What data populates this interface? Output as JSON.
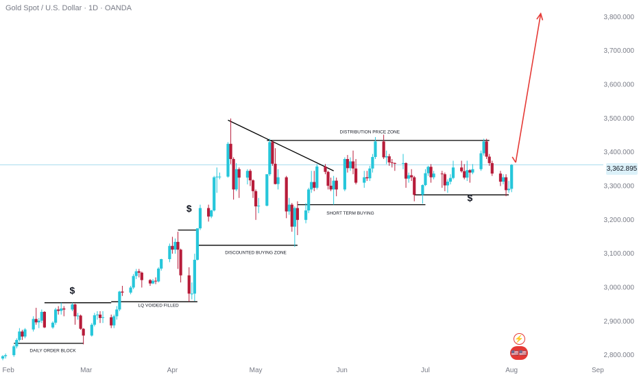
{
  "header": {
    "title": "Gold Spot / U.S. Dollar · 1D · OANDA"
  },
  "price_tag": "3,362.895",
  "colors": {
    "up": "#26c6da",
    "down": "#b71c3a",
    "projection": "#e53935",
    "axis_text": "#787b86",
    "current_price_line": "#a8dcee",
    "event": "#e53935"
  },
  "events": {
    "first_icon": "lightning-icon",
    "second_icon": "us-flag-icons",
    "second_label": "🇺🇸🇺🇸"
  },
  "chart_data": {
    "type": "candlestick",
    "title": "Gold Spot / U.S. Dollar · 1D · OANDA",
    "x_ticks": [
      "Feb",
      "Mar",
      "Apr",
      "May",
      "Jun",
      "Jul",
      "Aug",
      "Sep"
    ],
    "y_ticks": [
      "2,800.000",
      "2,900.000",
      "3,000.000",
      "3,100.000",
      "3,200.000",
      "3,300.000",
      "3,400.000",
      "3,500.000",
      "3,600.000",
      "3,700.000",
      "3,800.000"
    ],
    "ylim": [
      2780,
      3830
    ],
    "x_range": [
      "2025-01-29",
      "2025-09-03"
    ],
    "current_price": 3362.895,
    "candles": [
      [
        "2025-01-30",
        2790,
        2800,
        2785,
        2797
      ],
      [
        "2025-01-31",
        2797,
        2805,
        2790,
        2800
      ],
      [
        "2025-02-03",
        2800,
        2830,
        2795,
        2826
      ],
      [
        "2025-02-04",
        2826,
        2850,
        2820,
        2845
      ],
      [
        "2025-02-05",
        2845,
        2880,
        2840,
        2870
      ],
      [
        "2025-02-06",
        2870,
        2875,
        2845,
        2855
      ],
      [
        "2025-02-07",
        2855,
        2880,
        2850,
        2876
      ],
      [
        "2025-02-10",
        2876,
        2915,
        2870,
        2907
      ],
      [
        "2025-02-11",
        2907,
        2940,
        2890,
        2897
      ],
      [
        "2025-02-12",
        2897,
        2910,
        2880,
        2902
      ],
      [
        "2025-02-13",
        2902,
        2935,
        2895,
        2928
      ],
      [
        "2025-02-14",
        2928,
        2930,
        2880,
        2882
      ],
      [
        "2025-02-17",
        2882,
        2900,
        2878,
        2896
      ],
      [
        "2025-02-18",
        2896,
        2940,
        2890,
        2935
      ],
      [
        "2025-02-19",
        2935,
        2945,
        2920,
        2931
      ],
      [
        "2025-02-20",
        2931,
        2955,
        2920,
        2938
      ],
      [
        "2025-02-21",
        2938,
        2945,
        2915,
        2935
      ],
      [
        "2025-02-24",
        2935,
        2955,
        2930,
        2950
      ],
      [
        "2025-02-25",
        2950,
        2952,
        2890,
        2915
      ],
      [
        "2025-02-26",
        2915,
        2925,
        2905,
        2917
      ],
      [
        "2025-02-27",
        2917,
        2920,
        2875,
        2878
      ],
      [
        "2025-02-28",
        2878,
        2880,
        2832,
        2858
      ],
      [
        "2025-03-03",
        2858,
        2895,
        2855,
        2890
      ],
      [
        "2025-03-04",
        2890,
        2925,
        2885,
        2918
      ],
      [
        "2025-03-05",
        2918,
        2930,
        2905,
        2920
      ],
      [
        "2025-03-06",
        2920,
        2930,
        2895,
        2910
      ],
      [
        "2025-03-07",
        2910,
        2930,
        2895,
        2912
      ],
      [
        "2025-03-10",
        2912,
        2920,
        2880,
        2888
      ],
      [
        "2025-03-11",
        2888,
        2920,
        2880,
        2915
      ],
      [
        "2025-03-12",
        2915,
        2945,
        2905,
        2935
      ],
      [
        "2025-03-13",
        2935,
        2990,
        2930,
        2988
      ],
      [
        "2025-03-14",
        2988,
        3005,
        2975,
        2985
      ],
      [
        "2025-03-17",
        2985,
        3005,
        2980,
        3000
      ],
      [
        "2025-03-18",
        3000,
        3040,
        2995,
        3034
      ],
      [
        "2025-03-19",
        3034,
        3055,
        3025,
        3048
      ],
      [
        "2025-03-20",
        3048,
        3055,
        3030,
        3044
      ],
      [
        "2025-03-21",
        3044,
        3047,
        3000,
        3022
      ],
      [
        "2025-03-24",
        3022,
        3025,
        3005,
        3012
      ],
      [
        "2025-03-25",
        3012,
        3025,
        3010,
        3020
      ],
      [
        "2025-03-26",
        3020,
        3030,
        3010,
        3018
      ],
      [
        "2025-03-27",
        3018,
        3060,
        3015,
        3056
      ],
      [
        "2025-03-28",
        3056,
        3085,
        3050,
        3084
      ],
      [
        "2025-03-31",
        3084,
        3130,
        3075,
        3123
      ],
      [
        "2025-04-01",
        3123,
        3150,
        3100,
        3112
      ],
      [
        "2025-04-02",
        3112,
        3145,
        3100,
        3135
      ],
      [
        "2025-04-03",
        3135,
        3165,
        3055,
        3112
      ],
      [
        "2025-04-04",
        3112,
        3115,
        3015,
        3036
      ],
      [
        "2025-04-07",
        3036,
        3060,
        2958,
        2982
      ],
      [
        "2025-04-08",
        2982,
        3015,
        2965,
        2982
      ],
      [
        "2025-04-09",
        2982,
        3100,
        2960,
        3082
      ],
      [
        "2025-04-10",
        3082,
        3175,
        3080,
        3175
      ],
      [
        "2025-04-11",
        3175,
        3245,
        3170,
        3235
      ],
      [
        "2025-04-14",
        3235,
        3245,
        3195,
        3210
      ],
      [
        "2025-04-15",
        3210,
        3230,
        3205,
        3228
      ],
      [
        "2025-04-16",
        3228,
        3330,
        3225,
        3326
      ],
      [
        "2025-04-17",
        3326,
        3355,
        3280,
        3328
      ],
      [
        "2025-04-18",
        3328,
        3340,
        3320,
        3328
      ],
      [
        "2025-04-21",
        3328,
        3430,
        3325,
        3425
      ],
      [
        "2025-04-22",
        3425,
        3500,
        3365,
        3380
      ],
      [
        "2025-04-23",
        3380,
        3385,
        3260,
        3290
      ],
      [
        "2025-04-24",
        3290,
        3368,
        3285,
        3350
      ],
      [
        "2025-04-25",
        3350,
        3355,
        3265,
        3325
      ],
      [
        "2025-04-28",
        3325,
        3350,
        3305,
        3345
      ],
      [
        "2025-04-29",
        3345,
        3350,
        3300,
        3317
      ],
      [
        "2025-04-30",
        3317,
        3320,
        3265,
        3285
      ],
      [
        "2025-05-01",
        3285,
        3290,
        3200,
        3240
      ],
      [
        "2025-05-02",
        3240,
        3265,
        3220,
        3242
      ],
      [
        "2025-05-05",
        3242,
        3335,
        3240,
        3335
      ],
      [
        "2025-05-06",
        3335,
        3440,
        3330,
        3430
      ],
      [
        "2025-05-07",
        3430,
        3435,
        3360,
        3366
      ],
      [
        "2025-05-08",
        3366,
        3412,
        3305,
        3306
      ],
      [
        "2025-05-09",
        3306,
        3350,
        3290,
        3326
      ],
      [
        "2025-05-12",
        3326,
        3330,
        3205,
        3225
      ],
      [
        "2025-05-13",
        3225,
        3265,
        3215,
        3245
      ],
      [
        "2025-05-14",
        3245,
        3250,
        3165,
        3180
      ],
      [
        "2025-05-15",
        3180,
        3240,
        3120,
        3235
      ],
      [
        "2025-05-16",
        3235,
        3255,
        3155,
        3200
      ],
      [
        "2025-05-19",
        3200,
        3250,
        3190,
        3228
      ],
      [
        "2025-05-20",
        3228,
        3295,
        3220,
        3290
      ],
      [
        "2025-05-21",
        3290,
        3345,
        3280,
        3312
      ],
      [
        "2025-05-22",
        3312,
        3345,
        3285,
        3295
      ],
      [
        "2025-05-23",
        3295,
        3365,
        3290,
        3358
      ],
      [
        "2025-05-26",
        3358,
        3365,
        3335,
        3342
      ],
      [
        "2025-05-27",
        3342,
        3345,
        3290,
        3301
      ],
      [
        "2025-05-28",
        3301,
        3325,
        3285,
        3290
      ],
      [
        "2025-05-29",
        3290,
        3330,
        3245,
        3316
      ],
      [
        "2025-05-30",
        3316,
        3325,
        3270,
        3290
      ],
      [
        "2025-06-02",
        3290,
        3385,
        3285,
        3380
      ],
      [
        "2025-06-03",
        3380,
        3392,
        3340,
        3353
      ],
      [
        "2025-06-04",
        3353,
        3385,
        3345,
        3373
      ],
      [
        "2025-06-05",
        3373,
        3405,
        3335,
        3352
      ],
      [
        "2025-06-06",
        3352,
        3380,
        3305,
        3310
      ],
      [
        "2025-06-09",
        3310,
        3345,
        3295,
        3326
      ],
      [
        "2025-06-10",
        3326,
        3345,
        3315,
        3323
      ],
      [
        "2025-06-11",
        3323,
        3360,
        3315,
        3352
      ],
      [
        "2025-06-12",
        3352,
        3395,
        3340,
        3386
      ],
      [
        "2025-06-13",
        3386,
        3445,
        3380,
        3432
      ],
      [
        "2025-06-16",
        3432,
        3452,
        3380,
        3385
      ],
      [
        "2025-06-17",
        3385,
        3405,
        3365,
        3388
      ],
      [
        "2025-06-18",
        3388,
        3395,
        3360,
        3370
      ],
      [
        "2025-06-19",
        3370,
        3380,
        3355,
        3368
      ],
      [
        "2025-06-20",
        3368,
        3370,
        3345,
        3367
      ],
      [
        "2025-06-23",
        3367,
        3395,
        3350,
        3368
      ],
      [
        "2025-06-24",
        3368,
        3370,
        3295,
        3322
      ],
      [
        "2025-06-25",
        3322,
        3340,
        3310,
        3332
      ],
      [
        "2025-06-26",
        3332,
        3350,
        3315,
        3326
      ],
      [
        "2025-06-27",
        3326,
        3330,
        3255,
        3274
      ],
      [
        "2025-06-30",
        3274,
        3305,
        3248,
        3303
      ],
      [
        "2025-07-01",
        3303,
        3350,
        3300,
        3338
      ],
      [
        "2025-07-02",
        3338,
        3360,
        3330,
        3357
      ],
      [
        "2025-07-03",
        3357,
        3365,
        3310,
        3326
      ],
      [
        "2025-07-04",
        3326,
        3345,
        3320,
        3337
      ],
      [
        "2025-07-07",
        3337,
        3345,
        3295,
        3335
      ],
      [
        "2025-07-08",
        3335,
        3340,
        3285,
        3302
      ],
      [
        "2025-07-09",
        3302,
        3320,
        3280,
        3313
      ],
      [
        "2025-07-10",
        3313,
        3335,
        3305,
        3324
      ],
      [
        "2025-07-11",
        3324,
        3375,
        3320,
        3355
      ],
      [
        "2025-07-14",
        3355,
        3375,
        3340,
        3344
      ],
      [
        "2025-07-15",
        3344,
        3365,
        3320,
        3325
      ],
      [
        "2025-07-16",
        3325,
        3375,
        3315,
        3347
      ],
      [
        "2025-07-17",
        3347,
        3350,
        3310,
        3340
      ],
      [
        "2025-07-18",
        3340,
        3365,
        3335,
        3350
      ],
      [
        "2025-07-21",
        3350,
        3405,
        3345,
        3397
      ],
      [
        "2025-07-22",
        3397,
        3440,
        3390,
        3432
      ],
      [
        "2025-07-23",
        3432,
        3440,
        3380,
        3387
      ],
      [
        "2025-07-24",
        3387,
        3395,
        3360,
        3368
      ],
      [
        "2025-07-25",
        3368,
        3375,
        3330,
        3337
      ],
      [
        "2025-07-28",
        3337,
        3345,
        3300,
        3313
      ],
      [
        "2025-07-29",
        3313,
        3335,
        3305,
        3326
      ],
      [
        "2025-07-30",
        3326,
        3335,
        3270,
        3288
      ],
      [
        "2025-07-31",
        3288,
        3315,
        3280,
        3292
      ],
      [
        "2025-08-01",
        3292,
        3365,
        3282,
        3362.895
      ]
    ],
    "annotations": [
      {
        "type": "text",
        "text": "DAILY ORDER BLOCK",
        "date": "2025-02-17",
        "price": 2809
      },
      {
        "type": "text",
        "text": "LQ VOIDED FILLED",
        "date": "2025-03-27",
        "price": 2943
      },
      {
        "type": "text",
        "text": "DISCOUNTED BUYING ZONE",
        "date": "2025-05-01",
        "price": 3099
      },
      {
        "type": "text",
        "text": "SHORT TERM BUYING",
        "date": "2025-06-04",
        "price": 3216
      },
      {
        "type": "text",
        "text": "DISTRIBUTION PRICE ZONE",
        "date": "2025-06-11",
        "price": 3456
      },
      {
        "type": "text",
        "text": "$",
        "date": "2025-02-24",
        "price": 2982
      },
      {
        "type": "text",
        "text": "$",
        "date": "2025-04-07",
        "price": 3224
      },
      {
        "type": "text",
        "text": "$",
        "date": "2025-07-17",
        "price": 3255
      }
    ],
    "levels": [
      {
        "from": "2025-02-03",
        "to": "2025-02-28",
        "price": 2835
      },
      {
        "from": "2025-02-14",
        "to": "2025-03-10",
        "price": 2955
      },
      {
        "from": "2025-03-10",
        "to": "2025-04-10",
        "price": 2958
      },
      {
        "from": "2025-04-03",
        "to": "2025-04-10",
        "price": 3170
      },
      {
        "from": "2025-04-10",
        "to": "2025-05-16",
        "price": 3125
      },
      {
        "from": "2025-05-16",
        "to": "2025-07-01",
        "price": 3245
      },
      {
        "from": "2025-06-27",
        "to": "2025-07-31",
        "price": 3274
      },
      {
        "from": "2025-05-05",
        "to": "2025-07-24",
        "price": 3435
      }
    ],
    "trendline": {
      "from": [
        "2025-04-21",
        3495
      ],
      "to": [
        "2025-05-29",
        3345
      ]
    },
    "projection": {
      "points": [
        [
          "2025-08-01",
          3370
        ],
        [
          "2025-08-10",
          3810
        ]
      ]
    }
  }
}
